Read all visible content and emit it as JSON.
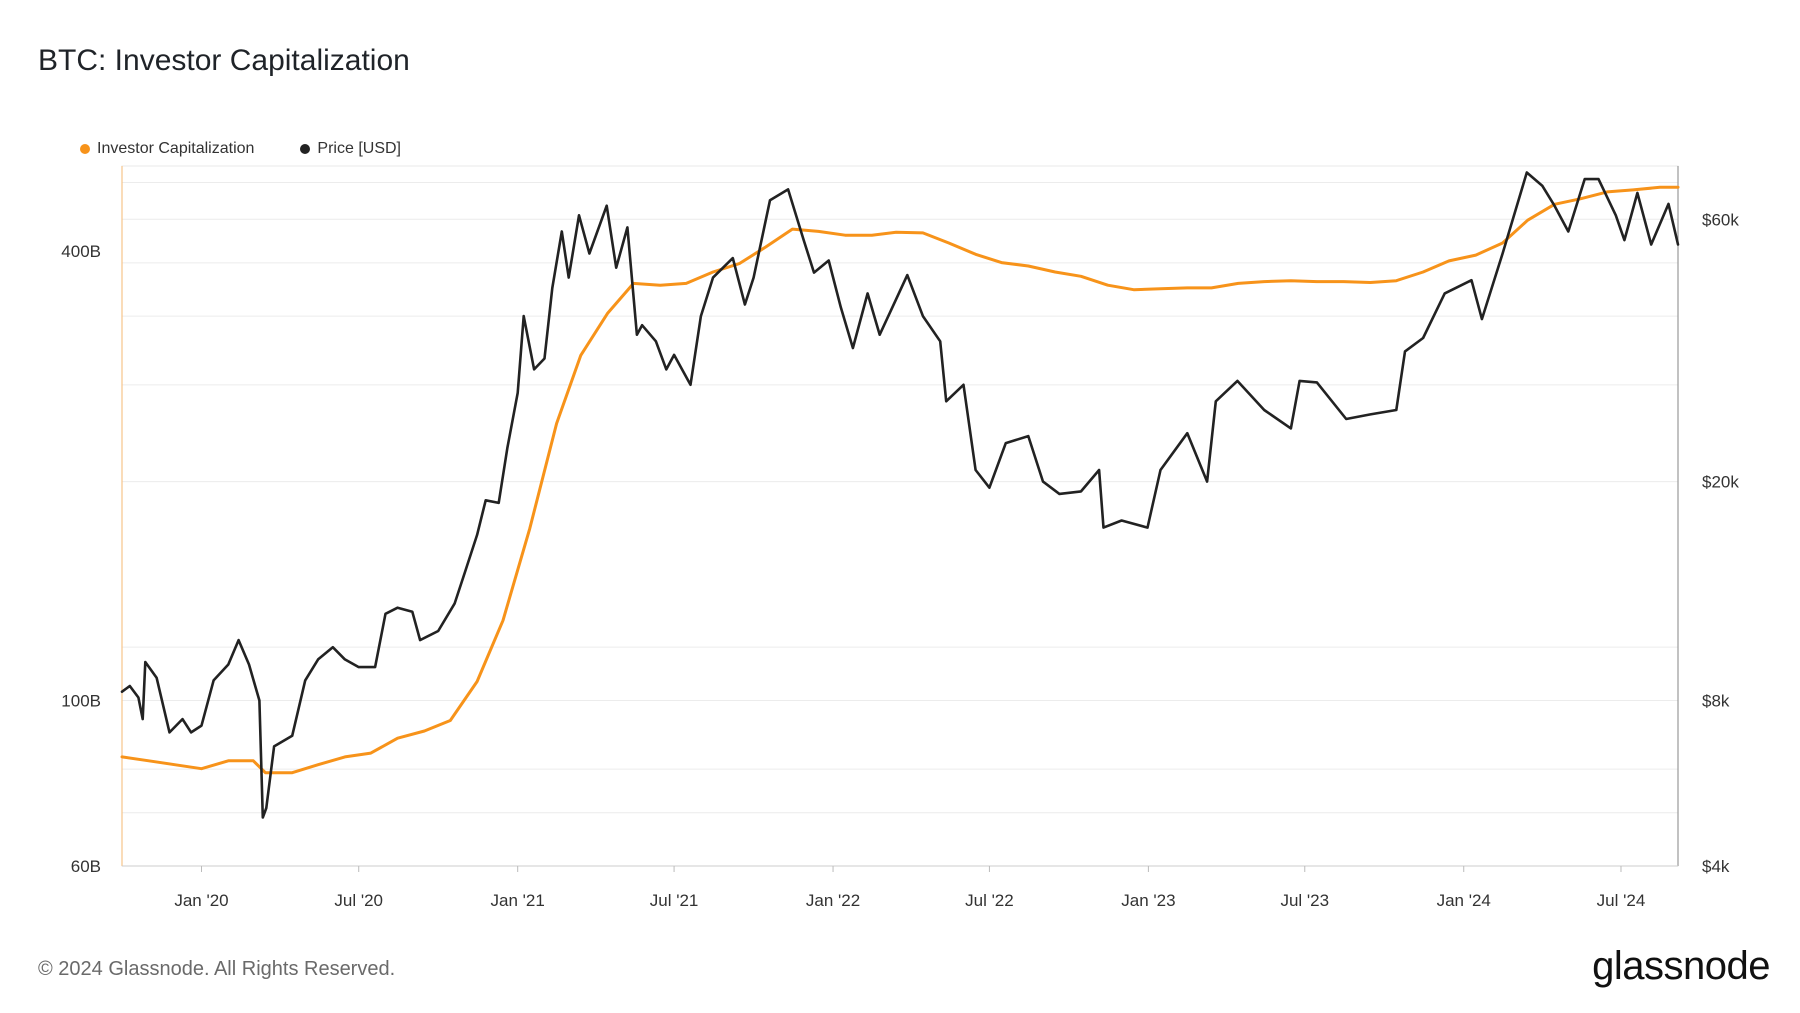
{
  "title": "BTC: Investor Capitalization",
  "footer": "© 2024 Glassnode. All Rights Reserved.",
  "brand": "glassnode",
  "colors": {
    "investor_cap": "#f7931a",
    "price": "#222222",
    "grid": "#ececec",
    "axis": "#cccccc"
  },
  "chart_data": {
    "type": "line",
    "title": "BTC: Investor Capitalization",
    "legend_position": "top-left",
    "grid": true,
    "x_ticks": [
      "Jan '20",
      "Jul '20",
      "Jan '21",
      "Jul '21",
      "Jan '22",
      "Jul '22",
      "Jan '23",
      "Jul '23",
      "Jan '24",
      "Jul '24"
    ],
    "x_range": [
      "2019-10-01",
      "2024-09-05"
    ],
    "y_left": {
      "label": "",
      "scale": "log",
      "ticks": [
        "60B",
        "100B",
        "400B"
      ],
      "range": [
        60,
        520
      ]
    },
    "y_right": {
      "label": "",
      "scale": "log",
      "ticks": [
        "$4k",
        "$8k",
        "$20k",
        "$60k"
      ],
      "range": [
        4000,
        75000
      ]
    },
    "series": [
      {
        "name": "Investor Capitalization",
        "axis": "left",
        "color": "#f7931a",
        "points": [
          [
            "2019-10-01",
            84
          ],
          [
            "2019-11-01",
            83
          ],
          [
            "2019-12-01",
            82
          ],
          [
            "2020-01-01",
            81
          ],
          [
            "2020-02-01",
            83
          ],
          [
            "2020-03-01",
            83
          ],
          [
            "2020-03-15",
            80
          ],
          [
            "2020-04-15",
            80
          ],
          [
            "2020-05-15",
            82
          ],
          [
            "2020-06-15",
            84
          ],
          [
            "2020-07-15",
            85
          ],
          [
            "2020-08-15",
            89
          ],
          [
            "2020-09-15",
            91
          ],
          [
            "2020-10-15",
            94
          ],
          [
            "2020-11-15",
            106
          ],
          [
            "2020-12-15",
            128
          ],
          [
            "2021-01-15",
            170
          ],
          [
            "2021-02-15",
            235
          ],
          [
            "2021-03-15",
            290
          ],
          [
            "2021-04-15",
            330
          ],
          [
            "2021-05-15",
            362
          ],
          [
            "2021-06-15",
            360
          ],
          [
            "2021-07-15",
            362
          ],
          [
            "2021-08-15",
            375
          ],
          [
            "2021-09-15",
            385
          ],
          [
            "2021-10-15",
            405
          ],
          [
            "2021-11-15",
            428
          ],
          [
            "2021-12-15",
            425
          ],
          [
            "2022-01-15",
            420
          ],
          [
            "2022-02-15",
            420
          ],
          [
            "2022-03-15",
            424
          ],
          [
            "2022-04-15",
            423
          ],
          [
            "2022-05-15",
            410
          ],
          [
            "2022-06-15",
            396
          ],
          [
            "2022-07-15",
            386
          ],
          [
            "2022-08-15",
            382
          ],
          [
            "2022-09-15",
            375
          ],
          [
            "2022-10-15",
            370
          ],
          [
            "2022-11-15",
            360
          ],
          [
            "2022-12-15",
            355
          ],
          [
            "2023-01-15",
            356
          ],
          [
            "2023-02-15",
            357
          ],
          [
            "2023-03-15",
            357
          ],
          [
            "2023-04-15",
            362
          ],
          [
            "2023-05-15",
            364
          ],
          [
            "2023-06-15",
            365
          ],
          [
            "2023-07-15",
            364
          ],
          [
            "2023-08-15",
            364
          ],
          [
            "2023-09-15",
            363
          ],
          [
            "2023-10-15",
            365
          ],
          [
            "2023-11-15",
            375
          ],
          [
            "2023-12-15",
            388
          ],
          [
            "2024-01-15",
            395
          ],
          [
            "2024-02-15",
            410
          ],
          [
            "2024-03-15",
            440
          ],
          [
            "2024-04-15",
            462
          ],
          [
            "2024-05-15",
            470
          ],
          [
            "2024-06-15",
            480
          ],
          [
            "2024-07-15",
            483
          ],
          [
            "2024-08-15",
            487
          ],
          [
            "2024-09-05",
            487
          ]
        ]
      },
      {
        "name": "Price [USD]",
        "axis": "right",
        "color": "#222222",
        "points": [
          [
            "2019-10-01",
            8300
          ],
          [
            "2019-10-10",
            8500
          ],
          [
            "2019-10-20",
            8100
          ],
          [
            "2019-10-25",
            7400
          ],
          [
            "2019-10-28",
            9400
          ],
          [
            "2019-11-10",
            8800
          ],
          [
            "2019-11-25",
            7000
          ],
          [
            "2019-12-10",
            7400
          ],
          [
            "2019-12-20",
            7000
          ],
          [
            "2020-01-01",
            7200
          ],
          [
            "2020-01-15",
            8700
          ],
          [
            "2020-02-01",
            9300
          ],
          [
            "2020-02-13",
            10300
          ],
          [
            "2020-02-25",
            9300
          ],
          [
            "2020-03-08",
            8000
          ],
          [
            "2020-03-12",
            4900
          ],
          [
            "2020-03-16",
            5100
          ],
          [
            "2020-03-25",
            6600
          ],
          [
            "2020-04-15",
            6900
          ],
          [
            "2020-04-30",
            8700
          ],
          [
            "2020-05-15",
            9500
          ],
          [
            "2020-06-01",
            10000
          ],
          [
            "2020-06-15",
            9500
          ],
          [
            "2020-07-01",
            9200
          ],
          [
            "2020-07-20",
            9200
          ],
          [
            "2020-08-01",
            11500
          ],
          [
            "2020-08-15",
            11800
          ],
          [
            "2020-09-01",
            11600
          ],
          [
            "2020-09-10",
            10300
          ],
          [
            "2020-10-01",
            10700
          ],
          [
            "2020-10-20",
            12000
          ],
          [
            "2020-11-01",
            13700
          ],
          [
            "2020-11-15",
            16000
          ],
          [
            "2020-11-25",
            18500
          ],
          [
            "2020-12-10",
            18300
          ],
          [
            "2020-12-20",
            23000
          ],
          [
            "2021-01-01",
            29000
          ],
          [
            "2021-01-08",
            40000
          ],
          [
            "2021-01-20",
            32000
          ],
          [
            "2021-02-01",
            33500
          ],
          [
            "2021-02-10",
            45000
          ],
          [
            "2021-02-21",
            57000
          ],
          [
            "2021-03-01",
            47000
          ],
          [
            "2021-03-13",
            61000
          ],
          [
            "2021-03-25",
            52000
          ],
          [
            "2021-04-14",
            63500
          ],
          [
            "2021-04-25",
            49000
          ],
          [
            "2021-05-08",
            58000
          ],
          [
            "2021-05-19",
            37000
          ],
          [
            "2021-05-25",
            38500
          ],
          [
            "2021-06-10",
            36000
          ],
          [
            "2021-06-22",
            32000
          ],
          [
            "2021-07-01",
            34000
          ],
          [
            "2021-07-20",
            30000
          ],
          [
            "2021-08-01",
            40000
          ],
          [
            "2021-08-15",
            47000
          ],
          [
            "2021-09-07",
            51000
          ],
          [
            "2021-09-21",
            42000
          ],
          [
            "2021-10-01",
            47000
          ],
          [
            "2021-10-20",
            65000
          ],
          [
            "2021-11-10",
            68000
          ],
          [
            "2021-11-28",
            55000
          ],
          [
            "2021-12-10",
            48000
          ],
          [
            "2021-12-27",
            50500
          ],
          [
            "2022-01-10",
            41500
          ],
          [
            "2022-01-24",
            35000
          ],
          [
            "2022-02-10",
            44000
          ],
          [
            "2022-02-24",
            37000
          ],
          [
            "2022-03-28",
            47500
          ],
          [
            "2022-04-15",
            40000
          ],
          [
            "2022-05-05",
            36000
          ],
          [
            "2022-05-12",
            28000
          ],
          [
            "2022-06-01",
            30000
          ],
          [
            "2022-06-15",
            21000
          ],
          [
            "2022-07-01",
            19500
          ],
          [
            "2022-07-20",
            23500
          ],
          [
            "2022-08-15",
            24200
          ],
          [
            "2022-09-01",
            20000
          ],
          [
            "2022-09-20",
            19000
          ],
          [
            "2022-10-15",
            19200
          ],
          [
            "2022-11-05",
            21000
          ],
          [
            "2022-11-10",
            16500
          ],
          [
            "2022-12-01",
            17000
          ],
          [
            "2022-12-31",
            16500
          ],
          [
            "2023-01-15",
            21000
          ],
          [
            "2023-02-15",
            24500
          ],
          [
            "2023-03-10",
            20000
          ],
          [
            "2023-03-20",
            28000
          ],
          [
            "2023-04-14",
            30500
          ],
          [
            "2023-05-15",
            27000
          ],
          [
            "2023-06-15",
            25000
          ],
          [
            "2023-06-25",
            30500
          ],
          [
            "2023-07-15",
            30300
          ],
          [
            "2023-08-18",
            26000
          ],
          [
            "2023-09-15",
            26500
          ],
          [
            "2023-10-15",
            27000
          ],
          [
            "2023-10-25",
            34500
          ],
          [
            "2023-11-15",
            36500
          ],
          [
            "2023-12-10",
            44000
          ],
          [
            "2024-01-10",
            46500
          ],
          [
            "2024-01-22",
            39500
          ],
          [
            "2024-02-15",
            52000
          ],
          [
            "2024-03-14",
            73000
          ],
          [
            "2024-04-01",
            69000
          ],
          [
            "2024-04-15",
            63500
          ],
          [
            "2024-05-01",
            57000
          ],
          [
            "2024-05-20",
            71000
          ],
          [
            "2024-06-05",
            71000
          ],
          [
            "2024-06-25",
            61000
          ],
          [
            "2024-07-05",
            55000
          ],
          [
            "2024-07-20",
            67000
          ],
          [
            "2024-08-05",
            54000
          ],
          [
            "2024-08-25",
            64000
          ],
          [
            "2024-09-05",
            54000
          ]
        ]
      }
    ]
  }
}
